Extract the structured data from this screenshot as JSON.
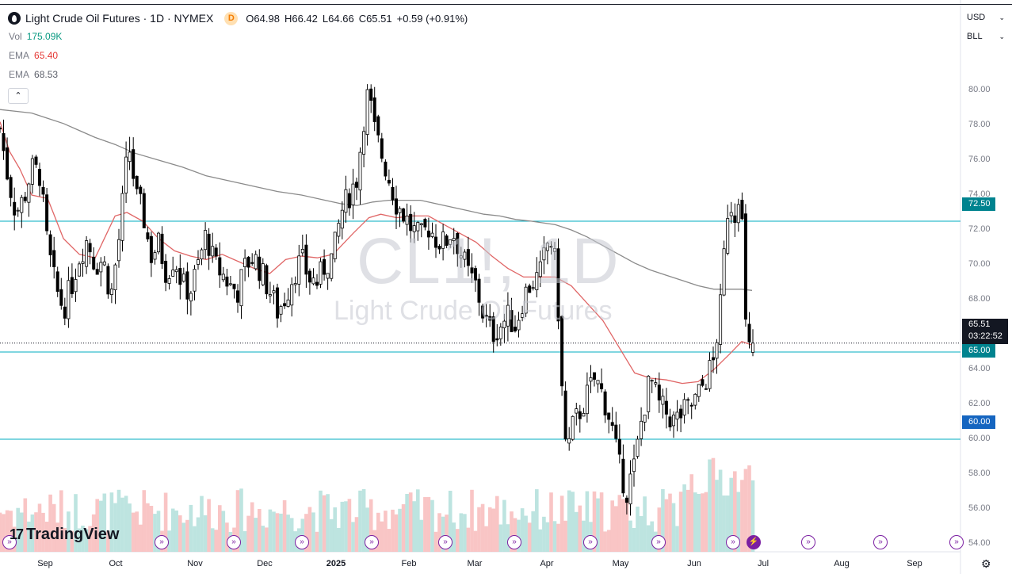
{
  "header": {
    "title": "Light Crude Oil Futures · 1D · NYMEX",
    "badge": "D",
    "open_label": "O",
    "open": "64.98",
    "high_label": "H",
    "high": "66.42",
    "low_label": "L",
    "low": "64.66",
    "close_label": "C",
    "close": "65.51",
    "change": "+0.59 (+0.91%)"
  },
  "indicators": [
    {
      "key": "Vol",
      "value": "175.09K",
      "color": "#089981"
    },
    {
      "key": "EMA",
      "value": "65.40",
      "color": "#e53935"
    },
    {
      "key": "EMA",
      "value": "68.53",
      "color": "#5d606b"
    }
  ],
  "collapse_icon": "chevron-up-icon",
  "top_right": {
    "currency": "USD",
    "unit": "BLL"
  },
  "watermark": {
    "symbol": "CL1!, 1D",
    "name": "Light Crude Oil Futures"
  },
  "logo": {
    "text": "TradingView"
  },
  "price_labels": {
    "current": "65.51",
    "countdown": "03:22:52",
    "level_72": "72.50",
    "level_65": "65.00",
    "level_60": "60.00"
  },
  "colors": {
    "up": "#ffffff",
    "down": "#000000",
    "ema_fast": "#e57373",
    "ema_slow": "#9e9e9e",
    "hline": "#00acc1",
    "vol_up": "#b2dfdb",
    "vol_down": "#f8bbbb",
    "event": "#7b1fa2"
  },
  "chart_data": {
    "type": "candlestick",
    "symbol": "CL1!",
    "interval": "1D",
    "ylim": [
      53,
      82
    ],
    "y_ticks": [
      "80.00",
      "78.00",
      "76.00",
      "74.00",
      "72.00",
      "70.00",
      "68.00",
      "66.00",
      "64.00",
      "62.00",
      "60.00",
      "58.00",
      "56.00",
      "54.00"
    ],
    "x_ticks": [
      "Sep",
      "Oct",
      "Nov",
      "Dec",
      "2025",
      "Feb",
      "Mar",
      "Apr",
      "May",
      "Jun",
      "Jul",
      "Aug",
      "Sep"
    ],
    "horizontal_levels": [
      72.5,
      65.0,
      60.0
    ],
    "current_price": 65.51,
    "ema_fast": {
      "name": "EMA",
      "last": 65.4
    },
    "ema_slow": {
      "name": "EMA",
      "last": 68.53
    },
    "ema_fast_path": [
      [
        0,
        78.2
      ],
      [
        12,
        76.5
      ],
      [
        25,
        75.5
      ],
      [
        40,
        74.0
      ],
      [
        60,
        73.8
      ],
      [
        80,
        71.5
      ],
      [
        100,
        70.6
      ],
      [
        120,
        70.4
      ],
      [
        145,
        72.8
      ],
      [
        160,
        73.0
      ],
      [
        180,
        72.5
      ],
      [
        200,
        71.5
      ],
      [
        220,
        70.8
      ],
      [
        240,
        70.5
      ],
      [
        260,
        70.3
      ],
      [
        280,
        70.6
      ],
      [
        300,
        70.2
      ],
      [
        320,
        69.8
      ],
      [
        340,
        69.5
      ],
      [
        360,
        70.3
      ],
      [
        380,
        70.5
      ],
      [
        400,
        70.4
      ],
      [
        420,
        70.6
      ],
      [
        445,
        71.8
      ],
      [
        465,
        72.7
      ],
      [
        480,
        72.9
      ],
      [
        500,
        72.7
      ],
      [
        520,
        72.8
      ],
      [
        540,
        72.8
      ],
      [
        560,
        72.3
      ],
      [
        580,
        71.8
      ],
      [
        600,
        71.3
      ],
      [
        620,
        70.5
      ],
      [
        640,
        69.8
      ],
      [
        660,
        69.3
      ],
      [
        680,
        69.3
      ],
      [
        700,
        69.3
      ],
      [
        720,
        68.8
      ],
      [
        740,
        67.8
      ],
      [
        760,
        66.8
      ],
      [
        780,
        65.3
      ],
      [
        800,
        63.8
      ],
      [
        820,
        63.5
      ],
      [
        840,
        63.4
      ],
      [
        860,
        63.2
      ],
      [
        880,
        63.3
      ],
      [
        900,
        64.0
      ],
      [
        920,
        64.9
      ],
      [
        935,
        65.6
      ],
      [
        948,
        65.4
      ]
    ],
    "ema_slow_path": [
      [
        0,
        78.9
      ],
      [
        20,
        78.8
      ],
      [
        40,
        78.7
      ],
      [
        60,
        78.4
      ],
      [
        80,
        78.1
      ],
      [
        100,
        77.7
      ],
      [
        120,
        77.3
      ],
      [
        145,
        76.9
      ],
      [
        170,
        76.4
      ],
      [
        200,
        76.0
      ],
      [
        230,
        75.6
      ],
      [
        260,
        75.1
      ],
      [
        290,
        74.8
      ],
      [
        320,
        74.5
      ],
      [
        350,
        74.2
      ],
      [
        380,
        74.0
      ],
      [
        410,
        73.7
      ],
      [
        430,
        73.5
      ],
      [
        450,
        73.4
      ],
      [
        470,
        73.6
      ],
      [
        490,
        73.7
      ],
      [
        510,
        73.7
      ],
      [
        530,
        73.7
      ],
      [
        550,
        73.5
      ],
      [
        570,
        73.3
      ],
      [
        590,
        73.1
      ],
      [
        610,
        72.9
      ],
      [
        630,
        72.8
      ],
      [
        650,
        72.6
      ],
      [
        670,
        72.5
      ],
      [
        700,
        72.3
      ],
      [
        720,
        72.0
      ],
      [
        740,
        71.6
      ],
      [
        760,
        71.1
      ],
      [
        780,
        70.6
      ],
      [
        800,
        70.1
      ],
      [
        820,
        69.7
      ],
      [
        840,
        69.4
      ],
      [
        860,
        69.1
      ],
      [
        880,
        68.8
      ],
      [
        900,
        68.6
      ],
      [
        920,
        68.6
      ],
      [
        935,
        68.6
      ],
      [
        948,
        68.53
      ]
    ],
    "price_keypoints": [
      [
        0,
        77.8
      ],
      [
        10,
        75.0
      ],
      [
        20,
        73.0
      ],
      [
        30,
        73.8
      ],
      [
        40,
        75.5
      ],
      [
        50,
        75.2
      ],
      [
        60,
        71.0
      ],
      [
        70,
        68.7
      ],
      [
        80,
        67.5
      ],
      [
        90,
        68.8
      ],
      [
        100,
        70.5
      ],
      [
        110,
        71.5
      ],
      [
        120,
        70.0
      ],
      [
        130,
        70.3
      ],
      [
        140,
        68.2
      ],
      [
        150,
        71.5
      ],
      [
        160,
        76.0
      ],
      [
        165,
        76.8
      ],
      [
        170,
        74.0
      ],
      [
        180,
        73.0
      ],
      [
        190,
        70.5
      ],
      [
        200,
        71.2
      ],
      [
        210,
        69.5
      ],
      [
        220,
        70.5
      ],
      [
        230,
        68.8
      ],
      [
        240,
        68.5
      ],
      [
        250,
        70.0
      ],
      [
        260,
        71.8
      ],
      [
        270,
        70.0
      ],
      [
        280,
        69.5
      ],
      [
        290,
        68.8
      ],
      [
        300,
        68.5
      ],
      [
        310,
        70.0
      ],
      [
        320,
        70.5
      ],
      [
        330,
        69.5
      ],
      [
        340,
        68.5
      ],
      [
        350,
        67.3
      ],
      [
        360,
        68.2
      ],
      [
        370,
        69.5
      ],
      [
        380,
        70.3
      ],
      [
        390,
        69.2
      ],
      [
        400,
        69.0
      ],
      [
        410,
        70.0
      ],
      [
        420,
        70.5
      ],
      [
        430,
        73.0
      ],
      [
        440,
        74.0
      ],
      [
        450,
        75.0
      ],
      [
        460,
        79.0
      ],
      [
        465,
        80.0
      ],
      [
        470,
        78.0
      ],
      [
        480,
        76.5
      ],
      [
        490,
        75.0
      ],
      [
        500,
        73.5
      ],
      [
        510,
        72.8
      ],
      [
        520,
        72.0
      ],
      [
        530,
        71.5
      ],
      [
        540,
        72.2
      ],
      [
        550,
        71.5
      ],
      [
        560,
        71.2
      ],
      [
        570,
        72.0
      ],
      [
        580,
        70.8
      ],
      [
        590,
        69.5
      ],
      [
        600,
        68.8
      ],
      [
        610,
        67.0
      ],
      [
        620,
        66.0
      ],
      [
        630,
        66.5
      ],
      [
        640,
        67.0
      ],
      [
        650,
        66.5
      ],
      [
        660,
        68.2
      ],
      [
        670,
        69.0
      ],
      [
        680,
        69.3
      ],
      [
        690,
        71.2
      ],
      [
        695,
        71.3
      ],
      [
        700,
        70.0
      ],
      [
        705,
        66.5
      ],
      [
        710,
        61.0
      ],
      [
        715,
        59.0
      ],
      [
        720,
        60.5
      ],
      [
        730,
        61.5
      ],
      [
        740,
        62.5
      ],
      [
        750,
        63.5
      ],
      [
        760,
        62.5
      ],
      [
        770,
        61.0
      ],
      [
        780,
        58.5
      ],
      [
        790,
        57.0
      ],
      [
        800,
        58.5
      ],
      [
        810,
        61.5
      ],
      [
        820,
        63.5
      ],
      [
        830,
        62.0
      ],
      [
        840,
        61.5
      ],
      [
        850,
        61.0
      ],
      [
        860,
        61.5
      ],
      [
        870,
        61.8
      ],
      [
        880,
        62.5
      ],
      [
        890,
        63.5
      ],
      [
        900,
        64.5
      ],
      [
        905,
        66.5
      ],
      [
        910,
        68.2
      ],
      [
        915,
        72.5
      ],
      [
        920,
        74.0
      ],
      [
        925,
        72.5
      ],
      [
        930,
        74.5
      ],
      [
        935,
        73.0
      ],
      [
        938,
        67.5
      ],
      [
        942,
        65.3
      ],
      [
        946,
        64.98
      ],
      [
        949,
        65.51
      ]
    ]
  },
  "event_markers": [
    {
      "icon": "arrow-right-circle-icon"
    },
    {
      "icon": "arrow-right-circle-icon"
    },
    {
      "icon": "arrow-right-circle-icon"
    },
    {
      "icon": "arrow-right-circle-icon"
    },
    {
      "icon": "arrow-right-circle-icon"
    },
    {
      "icon": "arrow-right-circle-icon"
    },
    {
      "icon": "arrow-right-circle-icon"
    },
    {
      "icon": "arrow-right-circle-icon"
    },
    {
      "icon": "arrow-right-circle-icon"
    },
    {
      "icon": "arrow-right-circle-icon"
    },
    {
      "icon": "lightning-icon"
    },
    {
      "icon": "arrow-right-circle-icon"
    },
    {
      "icon": "arrow-right-circle-icon"
    },
    {
      "icon": "arrow-right-circle-icon"
    }
  ],
  "settings_icon": "gear-icon"
}
